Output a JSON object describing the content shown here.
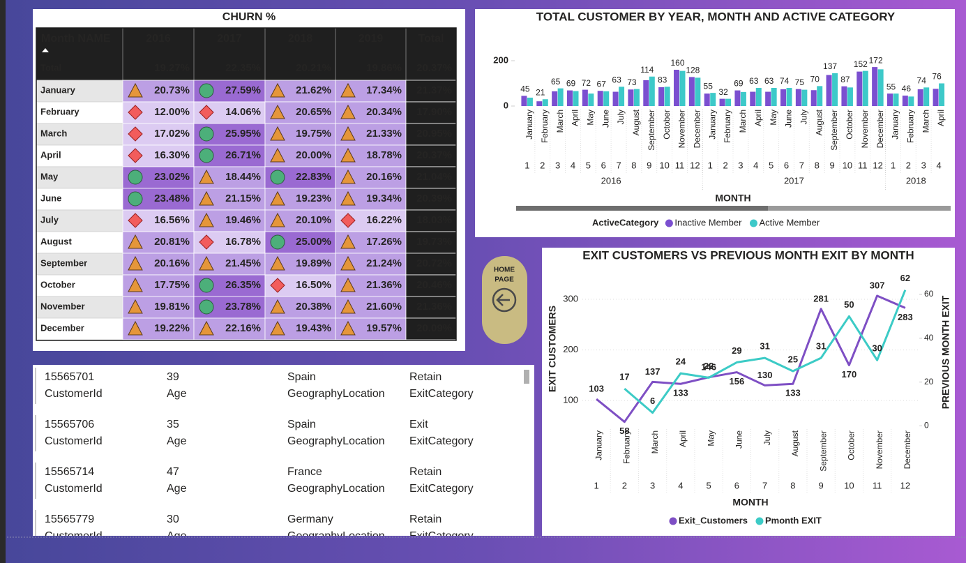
{
  "churn_table": {
    "title": "CHURN %",
    "header": [
      "Month NAME",
      "2016",
      "2017",
      "2018",
      "2019",
      "Total"
    ],
    "total_row": [
      "Total",
      "19.27%",
      "22.35%",
      "20.21%",
      "19.86%",
      "20.37%"
    ],
    "rows": [
      [
        "January",
        "20.73%",
        "27.59%",
        "21.62%",
        "17.34%",
        "21.37%"
      ],
      [
        "February",
        "12.00%",
        "14.06%",
        "20.65%",
        "20.34%",
        "17.90%"
      ],
      [
        "March",
        "17.02%",
        "25.95%",
        "19.75%",
        "21.33%",
        "20.95%"
      ],
      [
        "April",
        "16.30%",
        "26.71%",
        "20.00%",
        "18.78%",
        "20.37%"
      ],
      [
        "May",
        "23.02%",
        "18.44%",
        "22.83%",
        "20.16%",
        "21.04%"
      ],
      [
        "June",
        "23.48%",
        "21.15%",
        "19.23%",
        "19.34%",
        "20.39%"
      ],
      [
        "July",
        "16.56%",
        "19.46%",
        "20.10%",
        "16.22%",
        "18.03%"
      ],
      [
        "August",
        "20.81%",
        "16.78%",
        "25.00%",
        "17.26%",
        "19.73%"
      ],
      [
        "September",
        "20.16%",
        "21.45%",
        "19.89%",
        "21.24%",
        "20.72%"
      ],
      [
        "October",
        "17.75%",
        "26.35%",
        "16.50%",
        "21.36%",
        "20.46%"
      ],
      [
        "November",
        "19.81%",
        "23.78%",
        "20.38%",
        "21.60%",
        "21.36%"
      ],
      [
        "December",
        "19.22%",
        "22.16%",
        "19.43%",
        "19.57%",
        "20.09%"
      ]
    ],
    "icons": [
      [
        "triangle",
        "circle",
        "triangle",
        "triangle"
      ],
      [
        "diamond",
        "diamond",
        "triangle",
        "triangle"
      ],
      [
        "diamond",
        "circle",
        "triangle",
        "triangle"
      ],
      [
        "diamond",
        "circle",
        "triangle",
        "triangle"
      ],
      [
        "circle",
        "triangle",
        "circle",
        "triangle"
      ],
      [
        "circle",
        "triangle",
        "triangle",
        "triangle"
      ],
      [
        "diamond",
        "triangle",
        "triangle",
        "diamond"
      ],
      [
        "triangle",
        "diamond",
        "circle",
        "triangle"
      ],
      [
        "triangle",
        "triangle",
        "triangle",
        "triangle"
      ],
      [
        "triangle",
        "circle",
        "diamond",
        "triangle"
      ],
      [
        "triangle",
        "circle",
        "triangle",
        "triangle"
      ],
      [
        "triangle",
        "triangle",
        "triangle",
        "triangle"
      ]
    ],
    "icon_colors": {
      "triangle": "#e5963a",
      "circle": "#4caf7a",
      "diamond": "#f25c5c"
    },
    "cell_colors": {
      "triangle": "#bc9fe4",
      "circle": "#9a6ad2",
      "diamond": "#dccbf2"
    }
  },
  "customer_list": {
    "fields": [
      "CustomerId",
      "Age",
      "GeographyLocation",
      "ExitCategory"
    ],
    "records": [
      [
        "15565701",
        "39",
        "Spain",
        "Retain"
      ],
      [
        "15565706",
        "35",
        "Spain",
        "Exit"
      ],
      [
        "15565714",
        "47",
        "France",
        "Retain"
      ],
      [
        "15565779",
        "30",
        "Germany",
        "Retain"
      ]
    ]
  },
  "home_button": {
    "lines": [
      "HOME",
      "PAGE"
    ]
  },
  "chart_data": [
    {
      "type": "bar",
      "title": "TOTAL CUSTOMER BY YEAR, MONTH AND ACTIVE CATEGORY",
      "categories": [
        "January",
        "February",
        "March",
        "April",
        "May",
        "June",
        "July",
        "August",
        "September",
        "October",
        "November",
        "December",
        "January",
        "February",
        "March",
        "April",
        "May",
        "June",
        "July",
        "August",
        "September",
        "October",
        "November",
        "December",
        "January",
        "February",
        "March",
        "April"
      ],
      "month_numbers": [
        1,
        2,
        3,
        4,
        5,
        6,
        7,
        8,
        9,
        10,
        11,
        12,
        1,
        2,
        3,
        4,
        5,
        6,
        7,
        8,
        9,
        10,
        11,
        12,
        1,
        2,
        3,
        4
      ],
      "years": [
        "2016",
        "2017",
        "2018"
      ],
      "x_label": "MONTH",
      "legend_title": "ActiveCategory",
      "series": [
        {
          "name": "Inactive Member",
          "color": "#7b4fd0",
          "values": [
            45,
            21,
            65,
            69,
            72,
            67,
            63,
            73,
            114,
            83,
            160,
            128,
            55,
            32,
            69,
            63,
            63,
            74,
            75,
            70,
            137,
            87,
            152,
            172,
            55,
            46,
            74,
            76
          ]
        },
        {
          "name": "Active Member",
          "color": "#3dc9c9",
          "values": [
            37,
            30,
            78,
            66,
            55,
            65,
            85,
            75,
            130,
            85,
            155,
            125,
            58,
            32,
            62,
            80,
            80,
            80,
            72,
            88,
            145,
            82,
            155,
            162,
            55,
            42,
            82,
            100
          ]
        }
      ],
      "ylim": [
        0,
        200
      ],
      "yticks": [
        0,
        200
      ],
      "data_labels": true
    },
    {
      "type": "line",
      "title": "EXIT CUSTOMERS VS PREVIOUS MONTH EXIT BY MONTH",
      "categories": [
        "January",
        "February",
        "March",
        "April",
        "May",
        "June",
        "July",
        "August",
        "September",
        "October",
        "November",
        "December"
      ],
      "month_numbers": [
        1,
        2,
        3,
        4,
        5,
        6,
        7,
        8,
        9,
        10,
        11,
        12
      ],
      "x_label": "MONTH",
      "y_label": "EXIT CUSTOMERS",
      "y2_label": "PREVIOUS MONTH EXIT",
      "series": [
        {
          "name": "Exit_Customers",
          "color": "#7e4fc4",
          "values": [
            103,
            58,
            137,
            133,
            146,
            156,
            130,
            133,
            281,
            170,
            307,
            283
          ]
        },
        {
          "name": "Pmonth EXIT",
          "color": "#3ccbc6",
          "axis": "y2",
          "values": [
            null,
            17,
            6,
            24,
            22,
            29,
            31,
            25,
            31,
            50,
            30,
            62
          ]
        }
      ],
      "ylim": [
        50,
        340
      ],
      "yticks": [
        100,
        200,
        300
      ],
      "y2lim": [
        0,
        67
      ],
      "y2ticks": [
        0,
        20,
        40,
        60
      ],
      "grid": true
    }
  ]
}
